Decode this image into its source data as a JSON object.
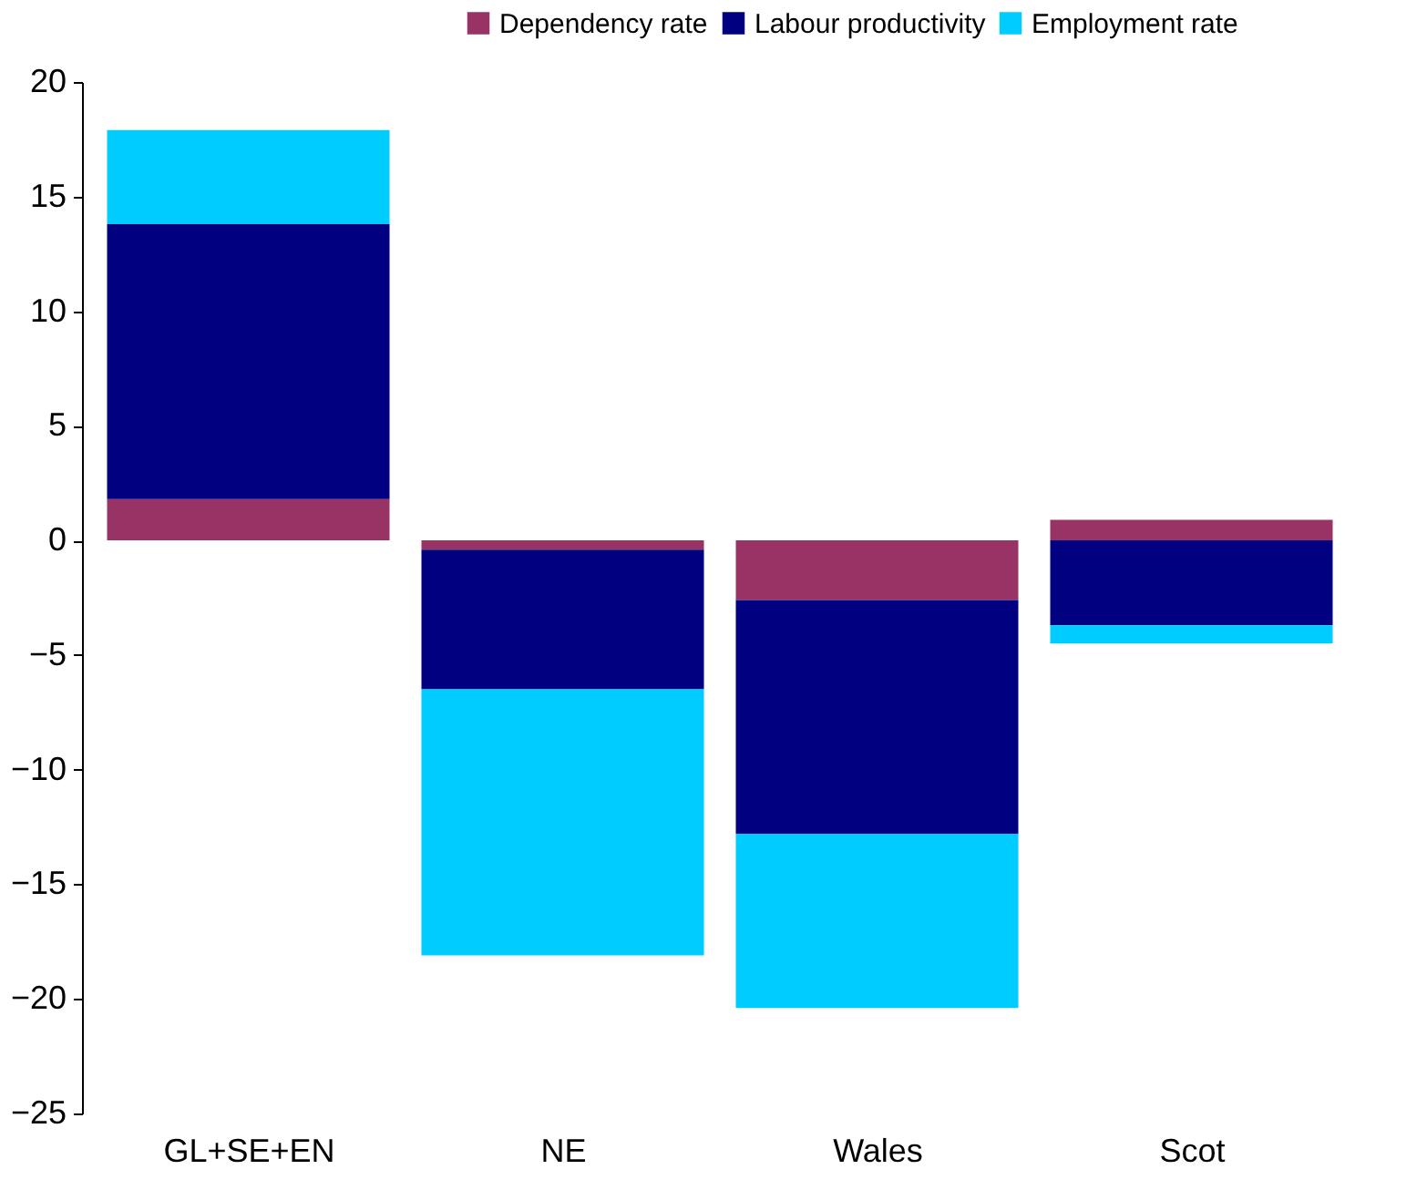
{
  "chart_data": {
    "type": "bar",
    "stacked": true,
    "categories": [
      "GL+SE+EN",
      "NE",
      "Wales",
      "Scot"
    ],
    "series": [
      {
        "name": "Dependency rate",
        "color": "#993366",
        "values": [
          1.8,
          -0.4,
          -2.6,
          0.9
        ]
      },
      {
        "name": "Labour productivity",
        "color": "#000080",
        "values": [
          12.0,
          -6.1,
          -10.2,
          -3.7
        ]
      },
      {
        "name": "Employment rate",
        "color": "#00ccff",
        "values": [
          4.1,
          -11.6,
          -7.6,
          -0.8
        ]
      }
    ],
    "ylim": [
      -25,
      20
    ],
    "yticks": [
      -25,
      -20,
      -15,
      -10,
      -5,
      0,
      5,
      10,
      15,
      20
    ],
    "grid": false,
    "legend": "top right"
  }
}
